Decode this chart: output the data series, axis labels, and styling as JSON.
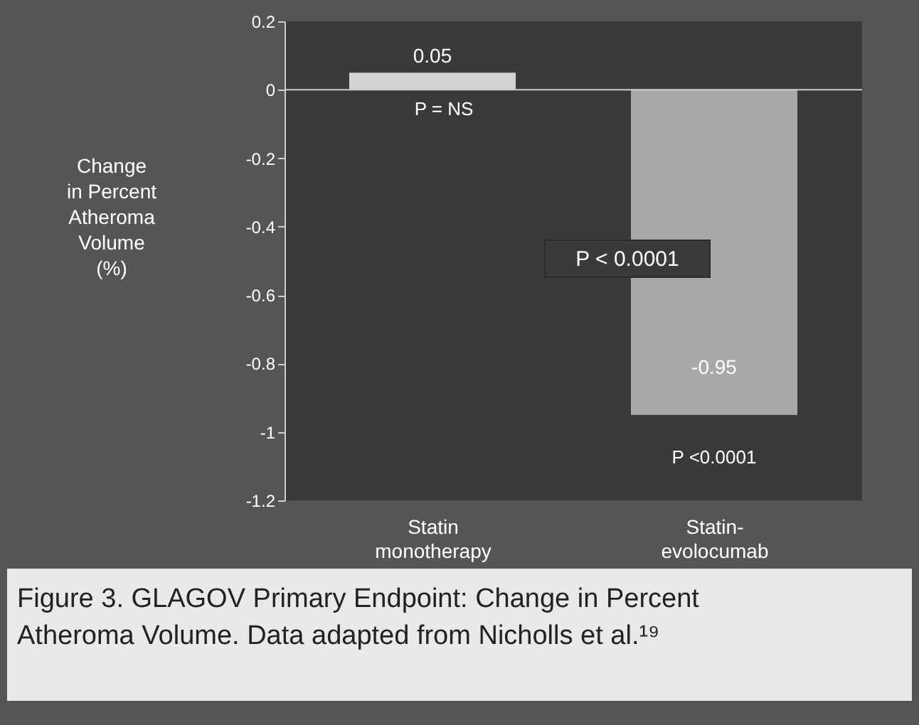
{
  "chart_data": {
    "type": "bar",
    "categories": [
      "Statin monotherapy",
      "Statin-evolocumab"
    ],
    "values": [
      0.05,
      -0.95
    ],
    "colors": [
      "#d2d2d2",
      "#a9a9a9"
    ],
    "ylabel": "Change\nin Percent\nAtheroma\nVolume\n(%)",
    "ylim": [
      -1.2,
      0.2
    ],
    "yticks": [
      0.2,
      0,
      -0.2,
      -0.4,
      -0.6,
      -0.8,
      -1,
      -1.2
    ],
    "data_labels": true,
    "grid": false,
    "ref_lines": [
      {
        "axis": "y",
        "value": 0
      }
    ],
    "annotations": [
      "P = NS",
      "P < 0.0001",
      "P <0.0001",
      "Figure 3. GLAGOV Primary Endpoint: Change in Percent\nAtheroma Volume. Data adapted from Nicholls et al.¹⁹"
    ]
  }
}
